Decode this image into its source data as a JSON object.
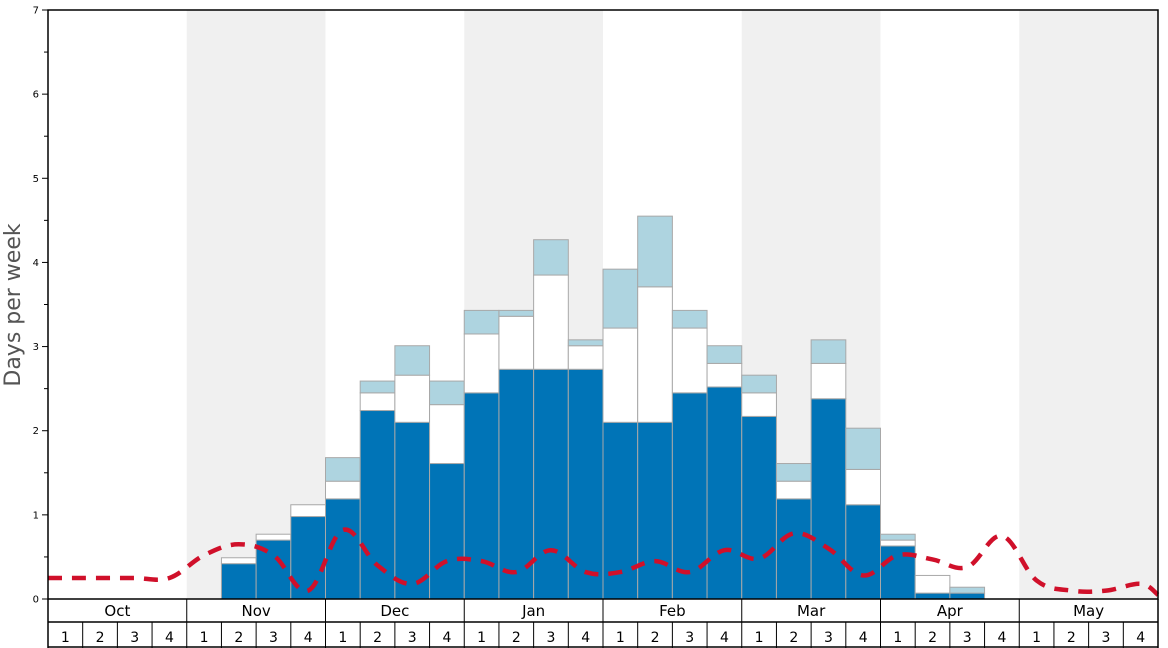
{
  "chart_data": {
    "type": "bar",
    "stacked": true,
    "title": "",
    "xlabel": "",
    "ylabel": "Days per week",
    "ylim": [
      0,
      7
    ],
    "yticks": [
      0,
      1,
      2,
      3,
      4,
      5,
      6,
      7
    ],
    "grid": false,
    "months": [
      "Oct",
      "Nov",
      "Dec",
      "Jan",
      "Feb",
      "Mar",
      "Apr",
      "May"
    ],
    "weeks": [
      "1",
      "2",
      "3",
      "4"
    ],
    "colors": {
      "dark": "#0074b7",
      "white": "#ffffff",
      "light": "#aed4e0",
      "line": "#d0102a",
      "shade": "#f0f0f0",
      "bar_edge": "#a8a8a8"
    },
    "series": [
      {
        "values": [
          0,
          0,
          0,
          0,
          0,
          0.42,
          0.7,
          0.98,
          1.19,
          2.24,
          2.1,
          1.61,
          2.45,
          2.73,
          2.73,
          2.73,
          2.1,
          2.1,
          2.45,
          2.52,
          2.17,
          1.19,
          2.38,
          1.12,
          0.63,
          0.07,
          0.07,
          0,
          0,
          0,
          0,
          0
        ]
      },
      {
        "values": [
          0,
          0,
          0,
          0,
          0,
          0.07,
          0.07,
          0.14,
          0.21,
          0.21,
          0.56,
          0.7,
          0.7,
          0.63,
          1.12,
          0.28,
          1.12,
          1.61,
          0.77,
          0.28,
          0.28,
          0.21,
          0.42,
          0.42,
          0.07,
          0.21,
          0,
          0,
          0,
          0,
          0,
          0
        ]
      },
      {
        "values": [
          0,
          0,
          0,
          0,
          0,
          0,
          0,
          0,
          0.28,
          0.14,
          0.35,
          0.28,
          0.28,
          0.07,
          0.42,
          0.07,
          0.7,
          0.84,
          0.21,
          0.21,
          0.21,
          0.21,
          0.28,
          0.49,
          0.07,
          0,
          0.07,
          0,
          0,
          0,
          0,
          0
        ]
      },
      {
        "type": "line",
        "style": "dashed",
        "values": [
          0.25,
          0.25,
          0.25,
          0.25,
          0.52,
          0.65,
          0.52,
          0.1,
          0.82,
          0.4,
          0.18,
          0.45,
          0.45,
          0.32,
          0.58,
          0.32,
          0.32,
          0.45,
          0.32,
          0.58,
          0.48,
          0.78,
          0.6,
          0.28,
          0.52,
          0.47,
          0.38,
          0.75,
          0.22,
          0.1,
          0.1,
          0.18
        ]
      }
    ],
    "line_tail": 0.05
  }
}
